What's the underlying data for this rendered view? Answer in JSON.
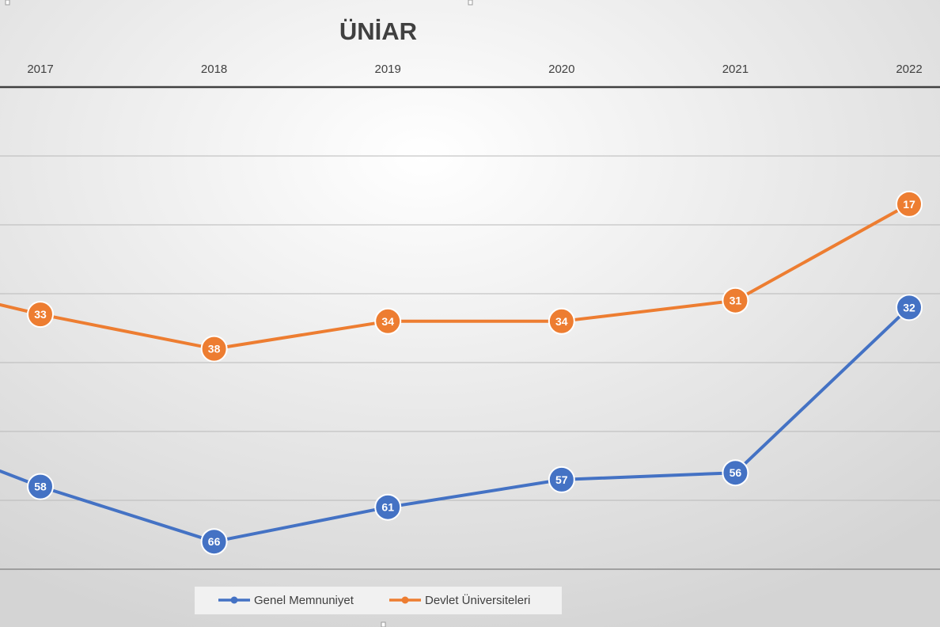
{
  "chart_data": {
    "type": "line",
    "title": "ÜNİAR",
    "categories": [
      "2017",
      "2018",
      "2019",
      "2020",
      "2021",
      "2022"
    ],
    "y_axis_inverted": true,
    "series": [
      {
        "name": "Genel Memnuniyet",
        "color": "#4472C4",
        "values": [
          58,
          66,
          61,
          57,
          56,
          32
        ]
      },
      {
        "name": "Devlet Üniversiteleri",
        "color": "#ED7D31",
        "values": [
          33,
          38,
          34,
          34,
          31,
          17
        ]
      }
    ],
    "legend_position": "bottom",
    "grid": true,
    "xlabel": "",
    "ylabel": ""
  }
}
